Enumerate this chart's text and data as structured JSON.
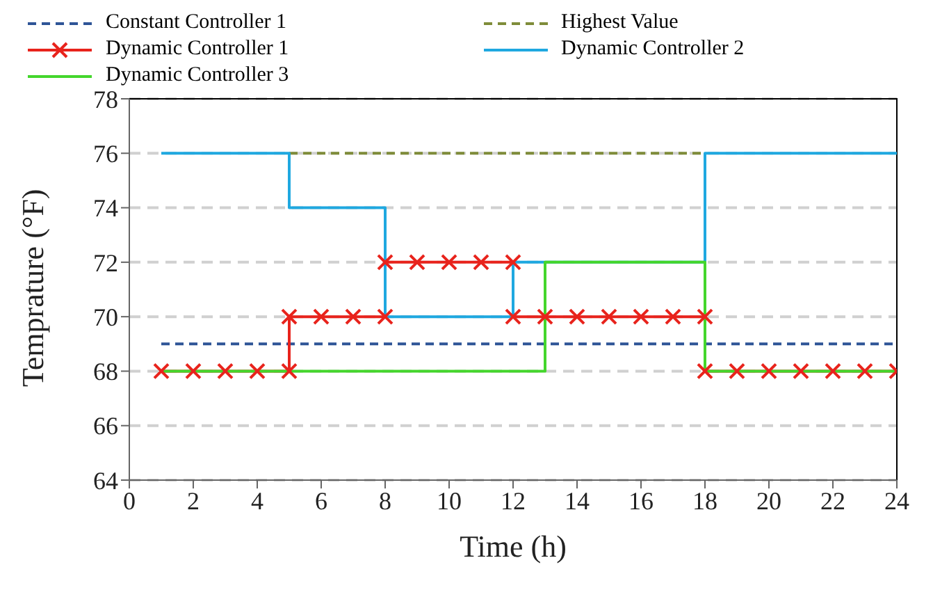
{
  "chart_data": {
    "type": "line",
    "xlabel": "Time (h)",
    "ylabel": "Temprature (°F)",
    "xlim": [
      0,
      24
    ],
    "xticks": [
      0,
      2,
      4,
      6,
      8,
      10,
      12,
      14,
      16,
      18,
      20,
      22,
      24
    ],
    "ylim": [
      64,
      78
    ],
    "yticks": [
      64,
      66,
      68,
      70,
      72,
      74,
      76,
      78
    ],
    "grid": "y",
    "legend": "top",
    "series": [
      {
        "name": "Constant Controller 1",
        "color": "#2f5597",
        "line_style": "dashed",
        "marker": "none",
        "x": [
          1,
          24
        ],
        "values": [
          69,
          69
        ]
      },
      {
        "name": "Highest Value",
        "color": "#7f8c3a",
        "line_style": "dashed",
        "marker": "none",
        "x": [
          5,
          18
        ],
        "values": [
          76,
          76
        ]
      },
      {
        "name": "Dynamic Controller 1",
        "color": "#e8231c",
        "line_style": "solid",
        "marker": "cross",
        "x": [
          1,
          2,
          3,
          4,
          5,
          5,
          6,
          7,
          8,
          8,
          9,
          10,
          11,
          12,
          12,
          13,
          14,
          15,
          16,
          17,
          18,
          18,
          19,
          20,
          21,
          22,
          23,
          24
        ],
        "values": [
          68,
          68,
          68,
          68,
          68,
          70,
          70,
          70,
          70,
          72,
          72,
          72,
          72,
          72,
          70,
          70,
          70,
          70,
          70,
          70,
          70,
          68,
          68,
          68,
          68,
          68,
          68,
          68
        ]
      },
      {
        "name": "Dynamic Controller 2",
        "color": "#1fa8e0",
        "line_style": "solid",
        "marker": "none",
        "x": [
          1,
          5,
          5,
          8,
          8,
          12,
          12,
          18,
          18,
          24
        ],
        "values": [
          76,
          76,
          74,
          74,
          70,
          70,
          72,
          72,
          76,
          76
        ]
      },
      {
        "name": "Dynamic Controller 3",
        "color": "#44d62c",
        "line_style": "solid",
        "marker": "none",
        "x": [
          1,
          13,
          13,
          18,
          18,
          24
        ],
        "values": [
          68,
          68,
          72,
          72,
          68,
          68
        ]
      }
    ]
  }
}
